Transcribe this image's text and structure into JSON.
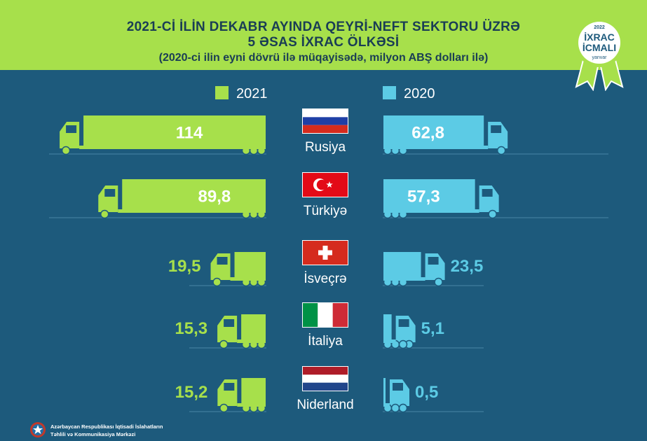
{
  "header": {
    "title_line1": "2021-Cİ İLİN DEKABR AYINDA QEYRİ-NEFT SEKTORU ÜZRƏ",
    "title_line2": "5 ƏSAS İXRAC ÖLKƏSİ",
    "subtitle": "(2020-ci ilin eyni dövrü ilə müqayisədə, milyon ABŞ dolları ilə)"
  },
  "badge": {
    "year": "2022",
    "line1": "İXRAC",
    "line2": "İCMALI",
    "month": "yanvar"
  },
  "footer": {
    "org_line1": "Azərbaycan Respublikası İqtisadi İslahatların",
    "org_line2": "Təhlili və Kommunikasiya Mərkəzi"
  },
  "colors": {
    "header_bg": "#a7e04b",
    "background": "#1d5a7c",
    "series_2021": "#a7e04b",
    "series_2020": "#5ccbe5",
    "title": "#1a3d55"
  },
  "chart_data": {
    "type": "bar",
    "categories": [
      "Rusiya",
      "Türkiyə",
      "İsveçrə",
      "İtaliya",
      "Niderland"
    ],
    "series": [
      {
        "name": "2021",
        "values": [
          114,
          89.8,
          19.5,
          15.3,
          15.2
        ],
        "labels": [
          "114",
          "89,8",
          "19,5",
          "15,3",
          "15,2"
        ]
      },
      {
        "name": "2020",
        "values": [
          62.8,
          57.3,
          23.5,
          5.1,
          0.5
        ],
        "labels": [
          "62,8",
          "57,3",
          "23,5",
          "5,1",
          "0,5"
        ]
      }
    ],
    "legend": "top",
    "flags": [
      "russia-flag",
      "turkey-flag",
      "switzerland-flag",
      "italy-flag",
      "netherlands-flag"
    ]
  }
}
